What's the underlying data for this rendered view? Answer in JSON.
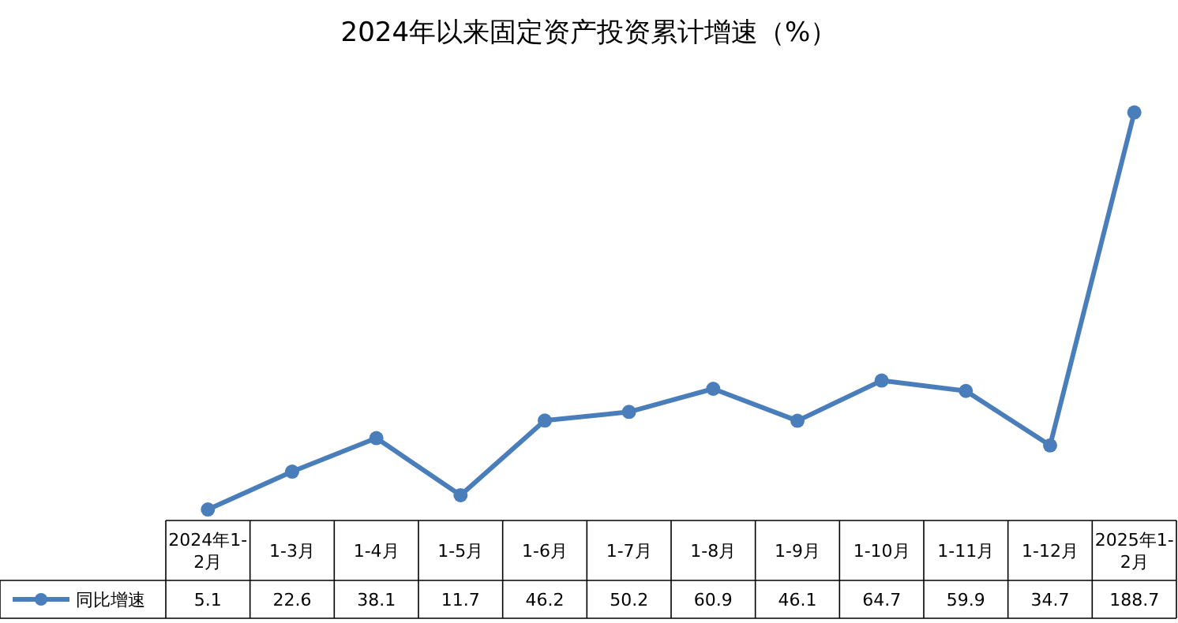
{
  "chart_data": {
    "type": "line",
    "title": "2024年以来固定资产投资累计增速（%）",
    "categories": [
      "2024年1-2月",
      "1-3月",
      "1-4月",
      "1-5月",
      "1-6月",
      "1-7月",
      "1-8月",
      "1-9月",
      "1-10月",
      "1-11月",
      "1-12月",
      "2025年1-2月"
    ],
    "series": [
      {
        "name": "同比增速",
        "color": "#4a7ebb",
        "values": [
          5.1,
          22.6,
          38.1,
          11.7,
          46.2,
          50.2,
          60.9,
          46.1,
          64.7,
          59.9,
          34.7,
          188.7
        ]
      }
    ],
    "data_labels": true,
    "legend": "bottom left",
    "marker": "circle",
    "line_style": "solid",
    "grid": false
  }
}
